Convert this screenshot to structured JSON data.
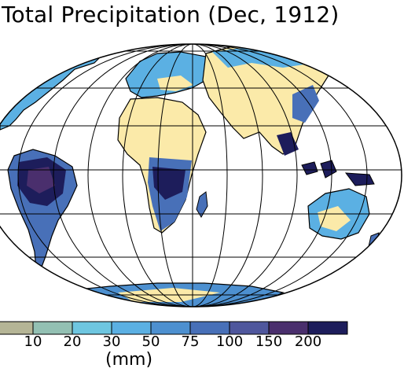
{
  "title": "Total Precipitation (Dec, 1912)",
  "unit_label": "(mm)",
  "colors": {
    "dry": "#fbeaa9",
    "ocean": "#ffffff",
    "coast": "#000000",
    "grid": "#000000"
  },
  "legend": {
    "bins": [
      {
        "color": "#b5b596"
      },
      {
        "color": "#93c0b3"
      },
      {
        "color": "#6ec6e0"
      },
      {
        "color": "#5bb0e3"
      },
      {
        "color": "#4d90d0"
      },
      {
        "color": "#4870b8"
      },
      {
        "color": "#4f579d"
      },
      {
        "color": "#4a2f6d"
      },
      {
        "color": "#1d1d5b"
      }
    ],
    "tick_labels": [
      "10",
      "20",
      "30",
      "50",
      "75",
      "100",
      "150",
      "200"
    ]
  }
}
